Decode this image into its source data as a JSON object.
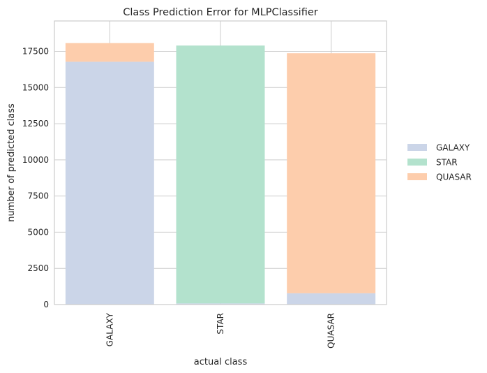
{
  "chart_data": {
    "type": "bar",
    "stacked": true,
    "title": "Class Prediction Error for MLPClassifier",
    "xlabel": "actual class",
    "ylabel": "number of predicted class",
    "categories": [
      "GALAXY",
      "STAR",
      "QUASAR"
    ],
    "ylim": [
      0,
      19600
    ],
    "yticks": [
      0,
      2500,
      5000,
      7500,
      10000,
      12500,
      15000,
      17500
    ],
    "grid": true,
    "legend_position": "right",
    "series": [
      {
        "name": "GALAXY",
        "color": "#cbd5e8",
        "values": [
          16780,
          80,
          780
        ]
      },
      {
        "name": "STAR",
        "color": "#b3e2cd",
        "values": [
          0,
          17820,
          0
        ]
      },
      {
        "name": "QUASAR",
        "color": "#fdcdac",
        "values": [
          1290,
          0,
          16590
        ]
      }
    ]
  }
}
